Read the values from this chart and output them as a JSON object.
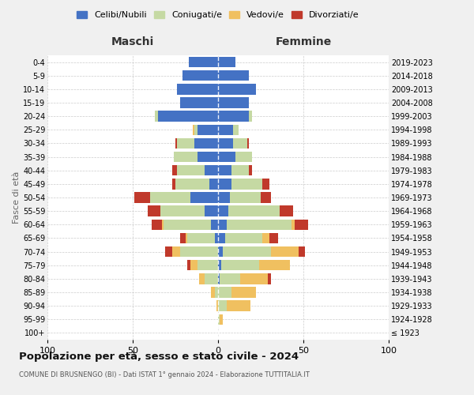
{
  "age_groups": [
    "100+",
    "95-99",
    "90-94",
    "85-89",
    "80-84",
    "75-79",
    "70-74",
    "65-69",
    "60-64",
    "55-59",
    "50-54",
    "45-49",
    "40-44",
    "35-39",
    "30-34",
    "25-29",
    "20-24",
    "15-19",
    "10-14",
    "5-9",
    "0-4"
  ],
  "birth_years": [
    "≤ 1923",
    "1924-1928",
    "1929-1933",
    "1934-1938",
    "1939-1943",
    "1944-1948",
    "1949-1953",
    "1954-1958",
    "1959-1963",
    "1964-1968",
    "1969-1973",
    "1974-1978",
    "1979-1983",
    "1984-1988",
    "1989-1993",
    "1994-1998",
    "1999-2003",
    "2004-2008",
    "2009-2013",
    "2014-2018",
    "2019-2023"
  ],
  "males_celibi": [
    0,
    0,
    0,
    0,
    0,
    0,
    0,
    2,
    4,
    8,
    16,
    5,
    8,
    12,
    14,
    12,
    35,
    22,
    24,
    21,
    17
  ],
  "males_coniugati": [
    0,
    0,
    0,
    2,
    8,
    12,
    22,
    16,
    28,
    26,
    24,
    20,
    16,
    14,
    10,
    2,
    2,
    0,
    0,
    0,
    0
  ],
  "males_vedovi": [
    0,
    0,
    1,
    2,
    3,
    4,
    5,
    1,
    1,
    0,
    0,
    0,
    0,
    0,
    0,
    1,
    0,
    0,
    0,
    0,
    0
  ],
  "males_divorziati": [
    0,
    0,
    0,
    0,
    0,
    2,
    4,
    3,
    6,
    7,
    9,
    2,
    3,
    0,
    1,
    0,
    0,
    0,
    0,
    0,
    0
  ],
  "females_nubili": [
    0,
    0,
    0,
    0,
    1,
    2,
    3,
    4,
    5,
    6,
    7,
    8,
    8,
    10,
    9,
    9,
    18,
    18,
    22,
    18,
    10
  ],
  "females_coniugate": [
    0,
    1,
    5,
    8,
    12,
    22,
    28,
    22,
    38,
    30,
    18,
    18,
    10,
    10,
    8,
    3,
    2,
    0,
    0,
    0,
    0
  ],
  "females_vedove": [
    0,
    2,
    14,
    14,
    16,
    18,
    16,
    4,
    2,
    0,
    0,
    0,
    0,
    0,
    0,
    0,
    0,
    0,
    0,
    0,
    0
  ],
  "females_divorziate": [
    0,
    0,
    0,
    0,
    2,
    0,
    4,
    5,
    8,
    8,
    6,
    4,
    2,
    0,
    1,
    0,
    0,
    0,
    0,
    0,
    0
  ],
  "color_celibi": "#4472c4",
  "color_coniugati": "#c5d9a3",
  "color_vedovi": "#f0c060",
  "color_divorziati": "#c0392b",
  "xlim": 100,
  "title": "Popolazione per età, sesso e stato civile - 2024",
  "subtitle": "COMUNE DI BRUSNENGO (BI) - Dati ISTAT 1° gennaio 2024 - Elaborazione TUTTITALIA.IT",
  "label_maschi": "Maschi",
  "label_femmine": "Femmine",
  "ylabel_left": "Fasce di età",
  "legend_labels": [
    "Celibi/Nubili",
    "Coniugati/e",
    "Vedovi/e",
    "Divorziati/e"
  ],
  "bg_color": "#f0f0f0",
  "plot_bg": "#ffffff",
  "xticks": [
    -100,
    -50,
    0,
    50,
    100
  ],
  "xtick_labels": [
    "100",
    "50",
    "0",
    "50",
    "100"
  ]
}
